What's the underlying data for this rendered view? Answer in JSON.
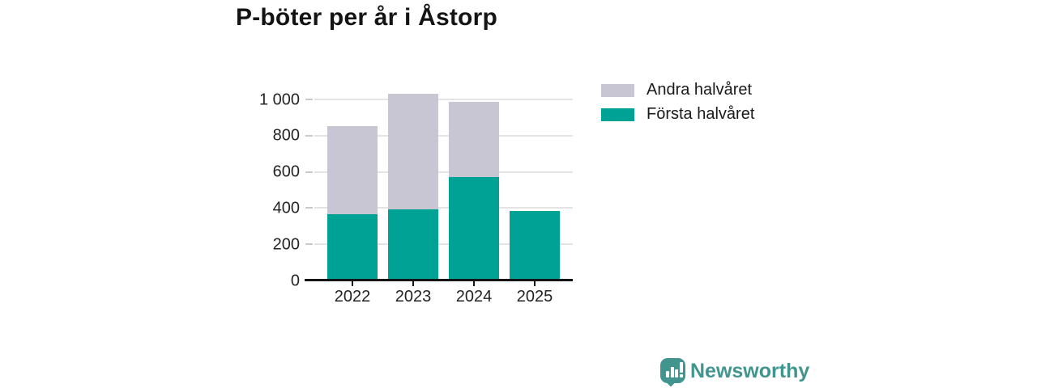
{
  "title": "P-böter per år i Åstorp",
  "colors": {
    "first_half": "#00a296",
    "second_half": "#c8c6d2",
    "grid": "#e4e4e7",
    "tick": "#c9c9c9",
    "axis": "#151515",
    "text": "#242424",
    "brand": "#41958e"
  },
  "chart_data": {
    "type": "bar",
    "stacked": true,
    "title": "P-böter per år i Åstorp",
    "categories": [
      "2022",
      "2023",
      "2024",
      "2025"
    ],
    "series": [
      {
        "name": "Första halvåret",
        "color_key": "first_half",
        "values": [
          365,
          395,
          570,
          385
        ]
      },
      {
        "name": "Andra halvåret",
        "color_key": "second_half",
        "values": [
          490,
          635,
          415,
          0
        ]
      }
    ],
    "totals": [
      855,
      1030,
      985,
      385
    ],
    "xlabel": "",
    "ylabel": "",
    "ylim": [
      0,
      1000
    ],
    "yticks": [
      0,
      200,
      400,
      600,
      800,
      1000
    ],
    "ytick_labels": [
      "0",
      "200",
      "400",
      "600",
      "800",
      "1 000"
    ],
    "grid": true,
    "legend_position": "right"
  },
  "legend": {
    "items": [
      {
        "label": "Andra halvåret",
        "color_key": "second_half"
      },
      {
        "label": "Första halvåret",
        "color_key": "first_half"
      }
    ]
  },
  "footer": {
    "brand": "Newsworthy"
  }
}
